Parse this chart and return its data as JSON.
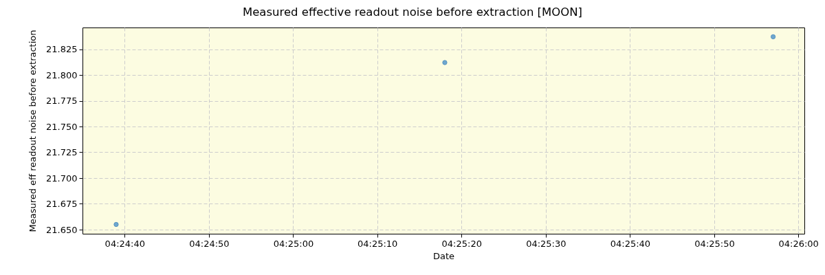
{
  "chart_data": {
    "type": "scatter",
    "title": "Measured effective readout noise before extraction [MOON]",
    "xlabel": "Date",
    "ylabel": "Measured eff readout noise before extraction",
    "x": [
      4.41083,
      4.42167,
      4.4325
    ],
    "series": [
      {
        "color": "#6fa7cf",
        "values": [
          21.655,
          21.812,
          21.837
        ]
      }
    ],
    "xlim": [
      4.40972,
      4.43353
    ],
    "ylim": [
      21.646,
      21.846
    ],
    "xticks": [
      {
        "value": 4.41111,
        "label": "04:24:40"
      },
      {
        "value": 4.41389,
        "label": "04:24:50"
      },
      {
        "value": 4.41667,
        "label": "04:25:00"
      },
      {
        "value": 4.41944,
        "label": "04:25:10"
      },
      {
        "value": 4.42222,
        "label": "04:25:20"
      },
      {
        "value": 4.425,
        "label": "04:25:30"
      },
      {
        "value": 4.42778,
        "label": "04:25:40"
      },
      {
        "value": 4.43056,
        "label": "04:25:50"
      },
      {
        "value": 4.43333,
        "label": "04:26:00"
      }
    ],
    "yticks": [
      {
        "value": 21.65,
        "label": "21.650"
      },
      21.675,
      {
        "value": 21.7,
        "label": "21.700"
      },
      21.725,
      {
        "value": 21.75,
        "label": "21.750"
      },
      21.775,
      {
        "value": 21.8,
        "label": "21.800"
      },
      21.825
    ],
    "grid": true,
    "marker": "circle"
  }
}
